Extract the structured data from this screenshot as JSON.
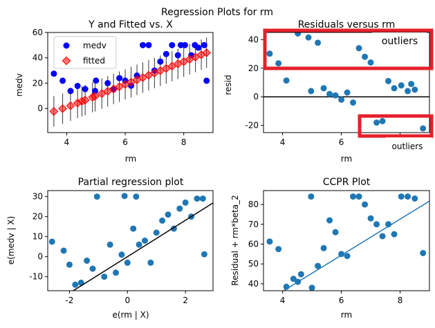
{
  "suptitle": "Regression Plots for rm",
  "chart_data": [
    {
      "type": "scatter",
      "title": "Y and Fitted vs. X",
      "xlabel": "rm",
      "ylabel": "medv",
      "xlim": [
        3.35,
        9.0
      ],
      "ylim": [
        -19,
        60
      ],
      "xticks": [
        4,
        6,
        8
      ],
      "yticks": [
        0,
        20,
        40,
        60
      ],
      "legend": {
        "placement": "upper-left",
        "entries": [
          {
            "label": "medv",
            "color": "#0000ff"
          },
          {
            "label": "fitted",
            "color": "#ff0000"
          }
        ]
      },
      "series": [
        {
          "name": "medv",
          "color": "#0000ff",
          "points": [
            [
              3.56,
              27.5
            ],
            [
              3.86,
              21.9
            ],
            [
              4.13,
              13.8
            ],
            [
              4.37,
              17.8
            ],
            [
              4.52,
              50
            ],
            [
              4.63,
              15.3
            ],
            [
              4.88,
              50
            ],
            [
              4.97,
              13.8
            ],
            [
              5.0,
              22
            ],
            [
              5.2,
              50
            ],
            [
              5.4,
              20
            ],
            [
              5.6,
              15
            ],
            [
              5.8,
              24
            ],
            [
              6.0,
              22
            ],
            [
              6.2,
              18
            ],
            [
              6.4,
              26
            ],
            [
              6.6,
              50
            ],
            [
              6.8,
              50
            ],
            [
              7.0,
              30
            ],
            [
              7.2,
              37
            ],
            [
              7.4,
              43
            ],
            [
              7.6,
              50
            ],
            [
              7.8,
              42
            ],
            [
              7.9,
              50
            ],
            [
              8.04,
              50
            ],
            [
              8.26,
              42
            ],
            [
              8.38,
              50
            ],
            [
              8.5,
              48
            ],
            [
              8.7,
              50
            ],
            [
              8.78,
              21.9
            ]
          ]
        },
        {
          "name": "fitted",
          "color": "#ff0000",
          "points": [
            [
              3.56,
              -2.3
            ],
            [
              3.86,
              -0.1
            ],
            [
              4.13,
              2.2
            ],
            [
              4.37,
              4.3
            ],
            [
              4.52,
              5.7
            ],
            [
              4.63,
              6.6
            ],
            [
              4.88,
              8.9
            ],
            [
              4.97,
              9.7
            ],
            [
              5.2,
              11.8
            ],
            [
              5.4,
              13.6
            ],
            [
              5.6,
              15.4
            ],
            [
              5.8,
              17.2
            ],
            [
              6.0,
              19.0
            ],
            [
              6.2,
              20.8
            ],
            [
              6.4,
              22.6
            ],
            [
              6.6,
              24.4
            ],
            [
              6.8,
              26.2
            ],
            [
              7.0,
              28.0
            ],
            [
              7.2,
              29.8
            ],
            [
              7.4,
              31.6
            ],
            [
              7.6,
              33.4
            ],
            [
              7.8,
              35.2
            ],
            [
              8.0,
              37.0
            ],
            [
              8.2,
              38.8
            ],
            [
              8.4,
              40.6
            ],
            [
              8.6,
              42.4
            ],
            [
              8.78,
              44.0
            ]
          ]
        }
      ]
    },
    {
      "type": "scatter",
      "title": "Residuals versus rm",
      "xlabel": "rm",
      "ylabel": "resid",
      "xlim": [
        3.35,
        9.0
      ],
      "ylim": [
        -25,
        45
      ],
      "xticks": [
        4,
        6,
        8
      ],
      "yticks": [
        -20,
        0,
        20,
        40
      ],
      "hline": 0,
      "points": [
        [
          3.56,
          30.2
        ],
        [
          3.86,
          23.4
        ],
        [
          4.13,
          11.4
        ],
        [
          4.52,
          44.3
        ],
        [
          4.88,
          41.5
        ],
        [
          4.97,
          4.0
        ],
        [
          5.2,
          37.8
        ],
        [
          5.4,
          6.0
        ],
        [
          5.6,
          2.0
        ],
        [
          5.8,
          1.0
        ],
        [
          6.0,
          -2.0
        ],
        [
          6.2,
          3.0
        ],
        [
          6.4,
          -4.0
        ],
        [
          6.6,
          34.0
        ],
        [
          6.8,
          28.0
        ],
        [
          7.0,
          24.0
        ],
        [
          7.2,
          -18.0
        ],
        [
          7.4,
          -17.0
        ],
        [
          7.6,
          11.0
        ],
        [
          7.8,
          6.0
        ],
        [
          8.04,
          8.0
        ],
        [
          8.26,
          4.0
        ],
        [
          8.38,
          9.0
        ],
        [
          8.5,
          5.0
        ],
        [
          8.78,
          -22.1
        ]
      ],
      "annotations": [
        {
          "text": "outliers",
          "region": "top"
        },
        {
          "text": "outliers",
          "region": "bottom-right"
        }
      ]
    },
    {
      "type": "scatter",
      "title": "Partial regression plot",
      "xlabel": "e(rm | X)",
      "ylabel": "e(medv | X)",
      "xlim": [
        -2.75,
        2.95
      ],
      "ylim": [
        -17,
        33
      ],
      "xticks": [
        -2,
        0,
        2
      ],
      "yticks": [
        -10,
        0,
        10,
        20,
        30
      ],
      "fit_line": {
        "slope": 9.1,
        "intercept": 0
      },
      "points": [
        [
          -2.6,
          7.5
        ],
        [
          -2.2,
          3.0
        ],
        [
          -2.0,
          -4.0
        ],
        [
          -1.8,
          -14.0
        ],
        [
          -1.6,
          -13.0
        ],
        [
          -1.4,
          -2.0
        ],
        [
          -1.2,
          -6.0
        ],
        [
          -1.05,
          30.0
        ],
        [
          -0.8,
          -10.0
        ],
        [
          -0.6,
          6.0
        ],
        [
          -0.4,
          -8.0
        ],
        [
          -0.2,
          1.0
        ],
        [
          0.0,
          -3.0
        ],
        [
          0.2,
          14.0
        ],
        [
          0.4,
          6.0
        ],
        [
          0.6,
          8.0
        ],
        [
          0.8,
          -3.0
        ],
        [
          1.0,
          12.0
        ],
        [
          1.2,
          18.0
        ],
        [
          1.4,
          21.0
        ],
        [
          1.6,
          14.0
        ],
        [
          1.8,
          24.0
        ],
        [
          2.0,
          27.0
        ],
        [
          2.2,
          20.0
        ],
        [
          2.4,
          29.0
        ],
        [
          2.6,
          29.0
        ],
        [
          2.65,
          1.2
        ],
        [
          -0.1,
          30.3
        ],
        [
          0.3,
          30.0
        ]
      ]
    },
    {
      "type": "scatter",
      "title": "CCPR Plot",
      "xlabel": "rm",
      "ylabel": "Residual + rm*beta_2",
      "xlim": [
        3.35,
        9.0
      ],
      "ylim": [
        36.5,
        87
      ],
      "xticks": [
        4,
        6,
        8
      ],
      "yticks": [
        40,
        50,
        60,
        70,
        80
      ],
      "fit_line": {
        "slope": 9.1,
        "intercept": -0.2
      },
      "points": [
        [
          3.56,
          61.3
        ],
        [
          3.86,
          57.5
        ],
        [
          4.13,
          38.5
        ],
        [
          4.37,
          42.5
        ],
        [
          4.52,
          41.0
        ],
        [
          4.63,
          44.8
        ],
        [
          4.97,
          84.0
        ],
        [
          5.0,
          38.0
        ],
        [
          5.2,
          49.0
        ],
        [
          5.4,
          58.0
        ],
        [
          5.6,
          72.0
        ],
        [
          5.8,
          66.0
        ],
        [
          6.0,
          55.0
        ],
        [
          6.2,
          54.0
        ],
        [
          6.4,
          84.0
        ],
        [
          6.6,
          84.0
        ],
        [
          6.8,
          80.0
        ],
        [
          7.0,
          73.0
        ],
        [
          7.2,
          70.0
        ],
        [
          7.4,
          64.0
        ],
        [
          7.6,
          70.0
        ],
        [
          7.8,
          65.0
        ],
        [
          8.04,
          84.0
        ],
        [
          8.26,
          84.0
        ],
        [
          8.5,
          83.0
        ],
        [
          8.78,
          55.5
        ]
      ]
    }
  ]
}
